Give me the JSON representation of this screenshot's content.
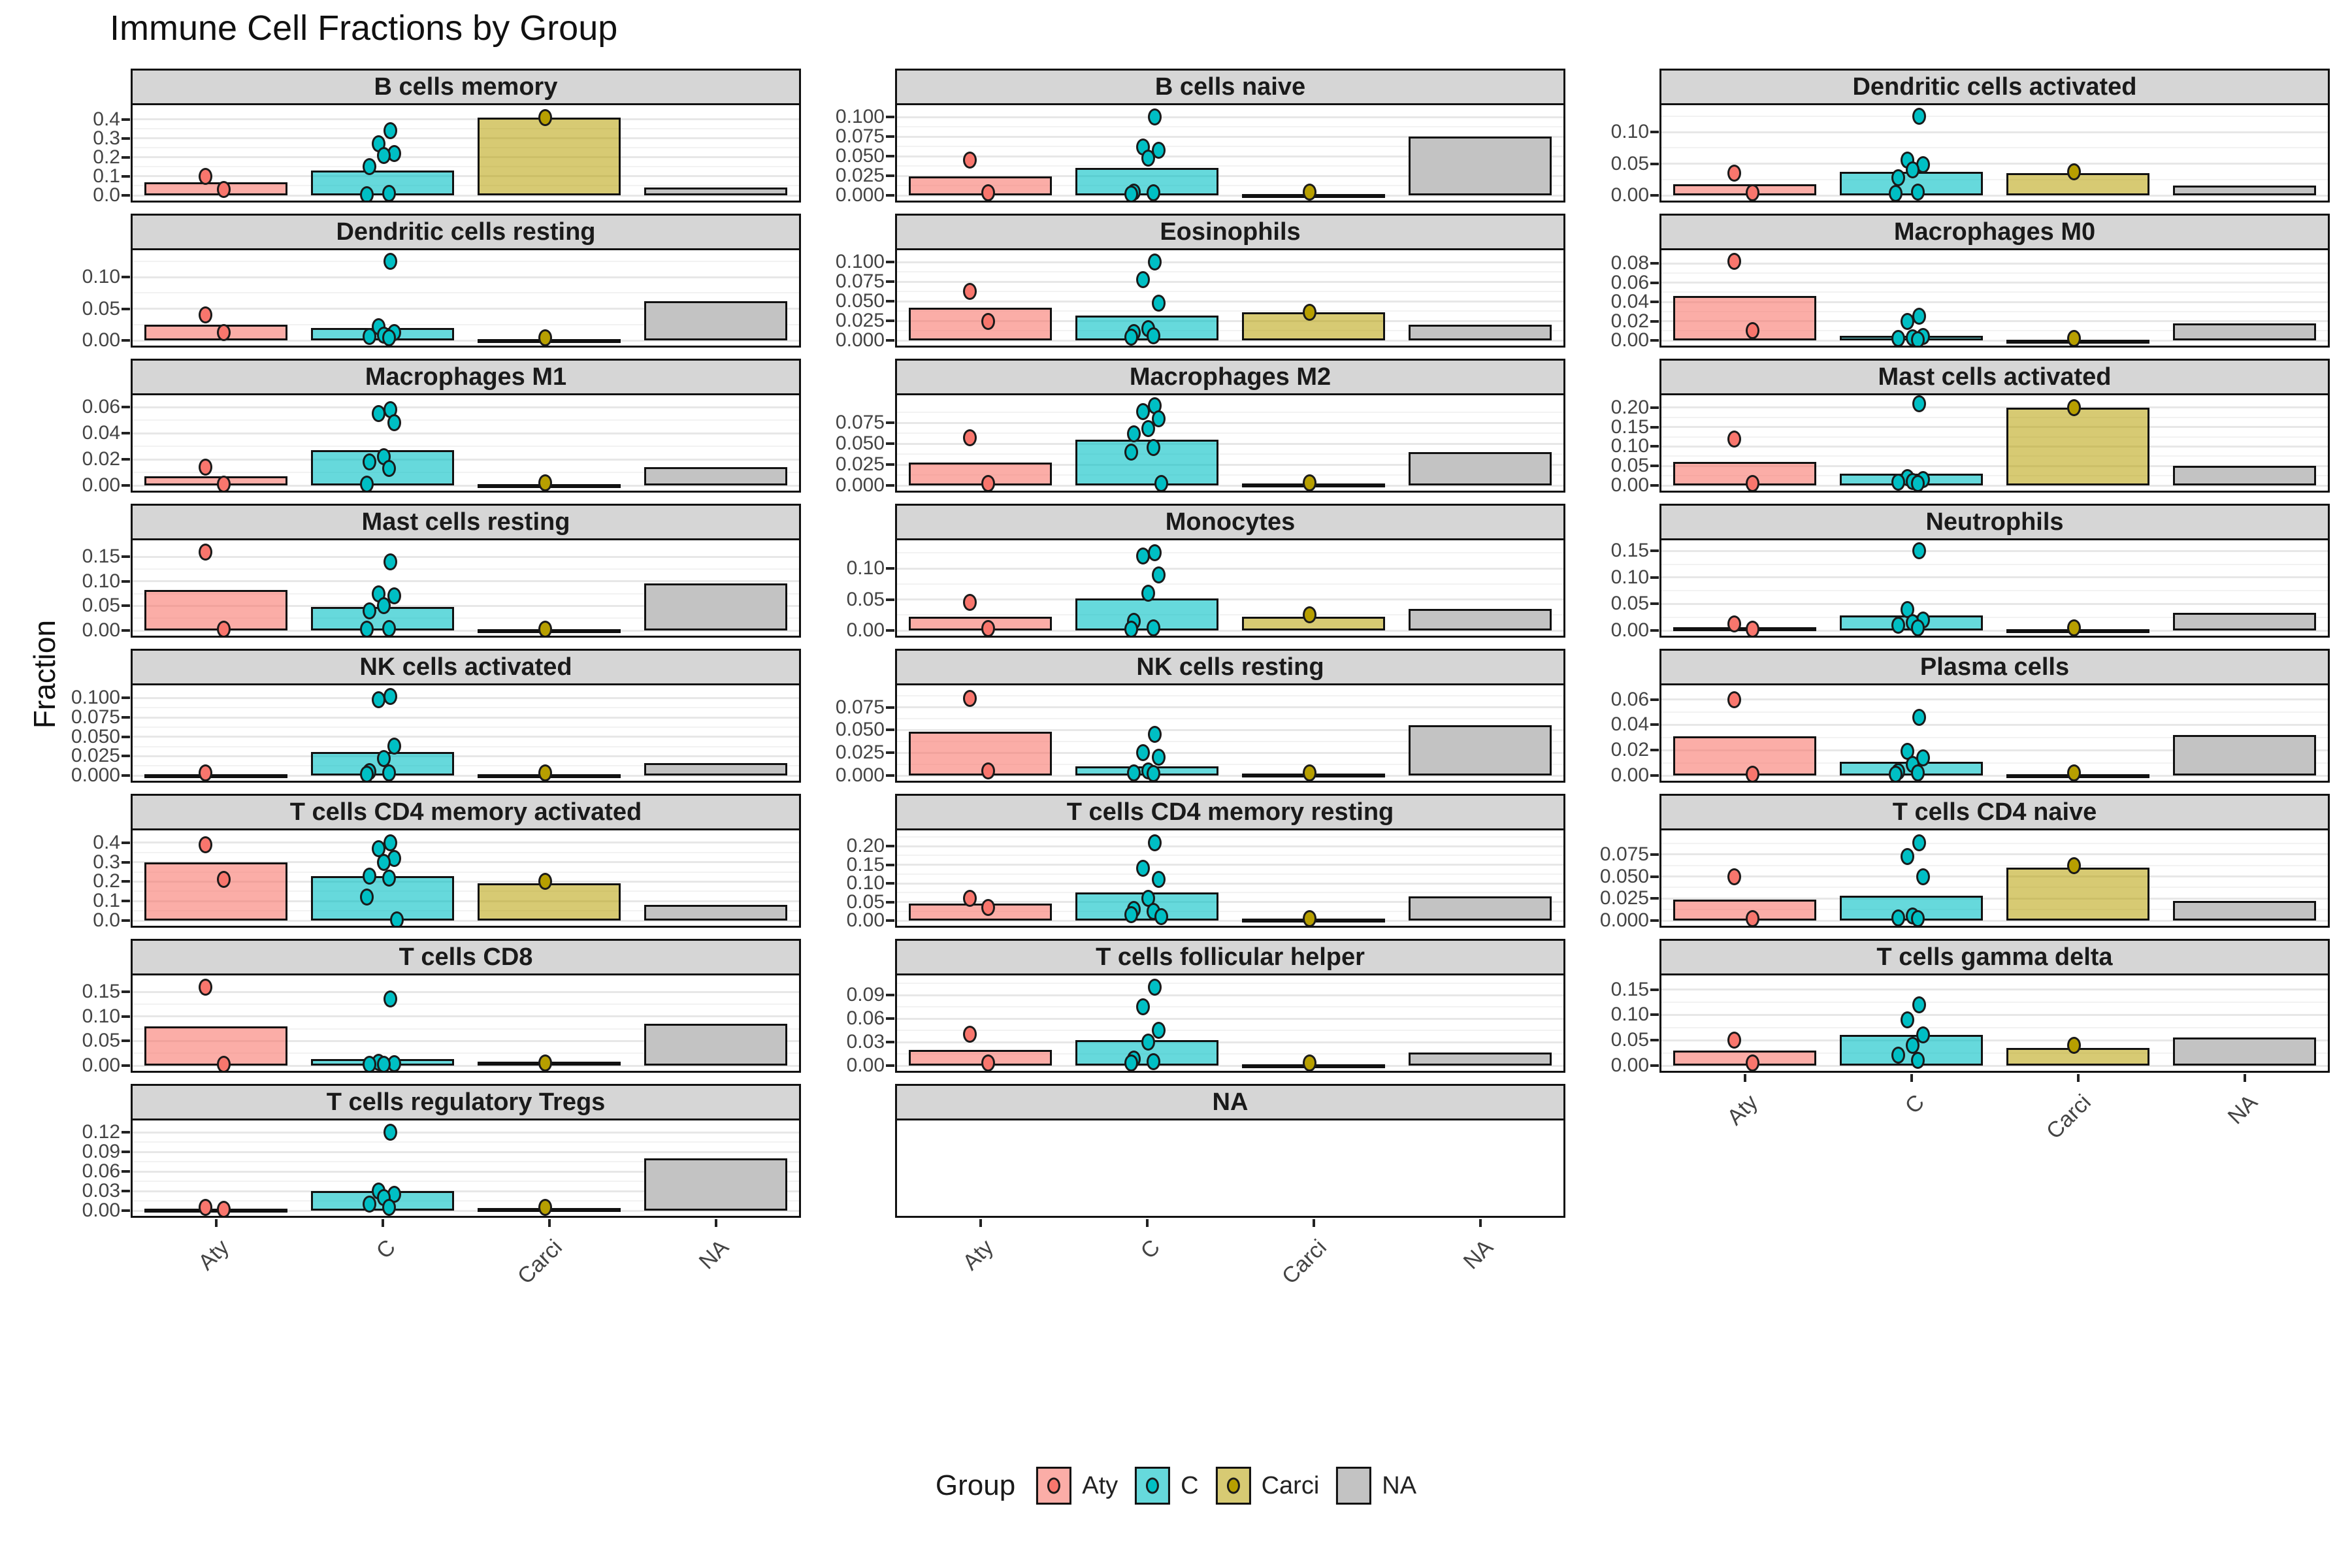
{
  "title": "Immune Cell Fractions by Group",
  "y_axis_label": "Fraction",
  "x_categories": [
    "Aty",
    "C",
    "Carci",
    "NA"
  ],
  "colors": {
    "aty_bar": "rgba(248,118,109,0.6)",
    "aty_point": "#F8766D",
    "c_bar": "rgba(0,191,196,0.6)",
    "c_point": "#00BFC4",
    "carci_bar": "rgba(183,159,0,0.55)",
    "carci_point": "#B79F00",
    "na_bar": "#C3C3C3",
    "strip_bg": "#D6D6D6",
    "panel_border": "#111111"
  },
  "legend": {
    "title": "Group",
    "items": [
      {
        "label": "Aty",
        "fill": "rgba(248,118,109,0.6)",
        "point": "#F8766D"
      },
      {
        "label": "C",
        "fill": "rgba(0,191,196,0.6)",
        "point": "#00BFC4"
      },
      {
        "label": "Carci",
        "fill": "rgba(183,159,0,0.55)",
        "point": "#B79F00"
      },
      {
        "label": "NA",
        "fill": "#C3C3C3",
        "point": null
      }
    ]
  },
  "chart_data": {
    "type": "bar",
    "layout": "facet-grid-3col",
    "categories": [
      "Aty",
      "C",
      "Carci",
      "NA"
    ],
    "facets": [
      {
        "facet": "B cells memory",
        "yticks": [
          0,
          0.1,
          0.2,
          0.3,
          0.4
        ],
        "ytick_labels": [
          "0.0",
          "0.1",
          "0.2",
          "0.3",
          "0.4"
        ],
        "ymax": 0.44,
        "values": [
          0.07,
          0.13,
          0.41,
          0.04
        ],
        "points": {
          "Aty": [
            0.1,
            0.03
          ],
          "C": [
            0.34,
            0.27,
            0.22,
            0.21,
            0.15,
            0.012,
            0.005
          ],
          "Carci": [
            0.41
          ]
        },
        "show_x_axis": false,
        "empty": false
      },
      {
        "facet": "B cells naive",
        "yticks": [
          0,
          0.025,
          0.05,
          0.075,
          0.1
        ],
        "ytick_labels": [
          "0.000",
          "0.025",
          "0.050",
          "0.075",
          "0.100"
        ],
        "ymax": 0.107,
        "values": [
          0.024,
          0.035,
          0.002,
          0.075
        ],
        "points": {
          "Aty": [
            0.045,
            0.003
          ],
          "C": [
            0.1,
            0.062,
            0.058,
            0.048,
            0.004,
            0.003,
            0.002
          ],
          "Carci": [
            0.004
          ]
        },
        "show_x_axis": false,
        "empty": false
      },
      {
        "facet": "Dendritic cells activated",
        "yticks": [
          0,
          0.05,
          0.1
        ],
        "ytick_labels": [
          "0.00",
          "0.05",
          "0.10"
        ],
        "ymax": 0.132,
        "values": [
          0.018,
          0.037,
          0.035,
          0.015
        ],
        "points": {
          "Aty": [
            0.035,
            0.004
          ],
          "C": [
            0.125,
            0.056,
            0.048,
            0.04,
            0.028,
            0.005,
            0.003
          ],
          "Carci": [
            0.037
          ]
        },
        "show_x_axis": false,
        "empty": false
      },
      {
        "facet": "Dendritic cells resting",
        "yticks": [
          0,
          0.05,
          0.1
        ],
        "ytick_labels": [
          "0.00",
          "0.05",
          "0.10"
        ],
        "ymax": 0.132,
        "values": [
          0.025,
          0.02,
          0.002,
          0.062
        ],
        "points": {
          "Aty": [
            0.04,
            0.012
          ],
          "C": [
            0.125,
            0.022,
            0.012,
            0.008,
            0.006,
            0.004
          ],
          "Carci": [
            0.004
          ]
        },
        "show_x_axis": false,
        "empty": false
      },
      {
        "facet": "Eosinophils",
        "yticks": [
          0,
          0.025,
          0.05,
          0.075,
          0.1
        ],
        "ytick_labels": [
          "0.000",
          "0.025",
          "0.050",
          "0.075",
          "0.100"
        ],
        "ymax": 0.107,
        "values": [
          0.042,
          0.032,
          0.036,
          0.02
        ],
        "points": {
          "Aty": [
            0.063,
            0.024
          ],
          "C": [
            0.1,
            0.078,
            0.048,
            0.015,
            0.01,
            0.006,
            0.004
          ],
          "Carci": [
            0.036
          ]
        },
        "show_x_axis": false,
        "empty": false
      },
      {
        "facet": "Macrophages M0",
        "yticks": [
          0,
          0.02,
          0.04,
          0.06,
          0.08
        ],
        "ytick_labels": [
          "0.00",
          "0.02",
          "0.04",
          "0.06",
          "0.08"
        ],
        "ymax": 0.087,
        "values": [
          0.046,
          0.005,
          0.001,
          0.018
        ],
        "points": {
          "Aty": [
            0.082,
            0.01
          ],
          "C": [
            0.025,
            0.02,
            0.004,
            0.003,
            0.002,
            0.001
          ],
          "Carci": [
            0.002
          ]
        },
        "show_x_axis": false,
        "empty": false
      },
      {
        "facet": "Macrophages M1",
        "yticks": [
          0,
          0.02,
          0.04,
          0.06
        ],
        "ytick_labels": [
          "0.00",
          "0.02",
          "0.04",
          "0.06"
        ],
        "ymax": 0.064,
        "values": [
          0.007,
          0.027,
          0.001,
          0.014
        ],
        "points": {
          "Aty": [
            0.014,
            0.001
          ],
          "C": [
            0.058,
            0.055,
            0.048,
            0.022,
            0.018,
            0.013,
            0.001
          ],
          "Carci": [
            0.002
          ]
        },
        "show_x_axis": false,
        "empty": false
      },
      {
        "facet": "Macrophages M2",
        "yticks": [
          0,
          0.025,
          0.05,
          0.075
        ],
        "ytick_labels": [
          "0.000",
          "0.025",
          "0.050",
          "0.075"
        ],
        "ymax": 0.1,
        "values": [
          0.027,
          0.055,
          0.002,
          0.04
        ],
        "points": {
          "Aty": [
            0.057,
            0.002
          ],
          "C": [
            0.095,
            0.088,
            0.08,
            0.068,
            0.062,
            0.045,
            0.04,
            0.002
          ],
          "Carci": [
            0.003
          ]
        },
        "show_x_axis": false,
        "empty": false
      },
      {
        "facet": "Mast cells activated",
        "yticks": [
          0,
          0.05,
          0.1,
          0.15,
          0.2
        ],
        "ytick_labels": [
          "0.00",
          "0.05",
          "0.10",
          "0.15",
          "0.20"
        ],
        "ymax": 0.215,
        "values": [
          0.06,
          0.03,
          0.2,
          0.05
        ],
        "points": {
          "Aty": [
            0.12,
            0.005
          ],
          "C": [
            0.21,
            0.02,
            0.015,
            0.01,
            0.008,
            0.005
          ],
          "Carci": [
            0.2
          ]
        },
        "show_x_axis": false,
        "empty": false
      },
      {
        "facet": "Mast cells resting",
        "yticks": [
          0,
          0.05,
          0.1,
          0.15
        ],
        "ytick_labels": [
          "0.00",
          "0.05",
          "0.10",
          "0.15"
        ],
        "ymax": 0.17,
        "values": [
          0.083,
          0.048,
          0.002,
          0.095
        ],
        "points": {
          "Aty": [
            0.16,
            0.002
          ],
          "C": [
            0.14,
            0.075,
            0.07,
            0.05,
            0.04,
            0.004,
            0.002
          ],
          "Carci": [
            0.003
          ]
        },
        "show_x_axis": false,
        "empty": false
      },
      {
        "facet": "Monocytes",
        "yticks": [
          0,
          0.05,
          0.1
        ],
        "ytick_labels": [
          "0.00",
          "0.05",
          "0.10"
        ],
        "ymax": 0.135,
        "values": [
          0.022,
          0.052,
          0.022,
          0.035
        ],
        "points": {
          "Aty": [
            0.045,
            0.003
          ],
          "C": [
            0.125,
            0.12,
            0.09,
            0.06,
            0.015,
            0.004,
            0.002
          ],
          "Carci": [
            0.025
          ]
        },
        "show_x_axis": false,
        "empty": false
      },
      {
        "facet": "Neutrophils",
        "yticks": [
          0,
          0.05,
          0.1,
          0.15
        ],
        "ytick_labels": [
          "0.00",
          "0.05",
          "0.10",
          "0.15"
        ],
        "ymax": 0.158,
        "values": [
          0.006,
          0.028,
          0.003,
          0.033
        ],
        "points": {
          "Aty": [
            0.012,
            0.003
          ],
          "C": [
            0.15,
            0.04,
            0.02,
            0.015,
            0.01,
            0.005
          ],
          "Carci": [
            0.005
          ]
        },
        "show_x_axis": false,
        "empty": false
      },
      {
        "facet": "NK cells activated",
        "yticks": [
          0,
          0.025,
          0.05,
          0.075,
          0.1
        ],
        "ytick_labels": [
          "0.000",
          "0.025",
          "0.050",
          "0.075",
          "0.100"
        ],
        "ymax": 0.108,
        "values": [
          0.002,
          0.03,
          0.002,
          0.016
        ],
        "points": {
          "Aty": [
            0.003
          ],
          "C": [
            0.102,
            0.098,
            0.038,
            0.022,
            0.005,
            0.003,
            0.002
          ],
          "Carci": [
            0.003
          ]
        },
        "show_x_axis": false,
        "empty": false
      },
      {
        "facet": "NK cells resting",
        "yticks": [
          0,
          0.025,
          0.05,
          0.075
        ],
        "ytick_labels": [
          "0.000",
          "0.025",
          "0.050",
          "0.075"
        ],
        "ymax": 0.092,
        "values": [
          0.048,
          0.01,
          0.002,
          0.055
        ],
        "points": {
          "Aty": [
            0.085,
            0.005
          ],
          "C": [
            0.045,
            0.025,
            0.02,
            0.005,
            0.003,
            0.002
          ],
          "Carci": [
            0.003
          ]
        },
        "show_x_axis": false,
        "empty": false
      },
      {
        "facet": "Plasma cells",
        "yticks": [
          0,
          0.02,
          0.04,
          0.06
        ],
        "ytick_labels": [
          "0.00",
          "0.02",
          "0.04",
          "0.06"
        ],
        "ymax": 0.066,
        "values": [
          0.031,
          0.011,
          0.001,
          0.032
        ],
        "points": {
          "Aty": [
            0.06,
            0.001
          ],
          "C": [
            0.046,
            0.019,
            0.014,
            0.009,
            0.003,
            0.002,
            0.001
          ],
          "Carci": [
            0.002
          ]
        },
        "show_x_axis": false,
        "empty": false
      },
      {
        "facet": "T cells CD4 memory activated",
        "yticks": [
          0,
          0.1,
          0.2,
          0.3,
          0.4
        ],
        "ytick_labels": [
          "0.0",
          "0.1",
          "0.2",
          "0.3",
          "0.4"
        ],
        "ymax": 0.43,
        "values": [
          0.3,
          0.23,
          0.19,
          0.08
        ],
        "points": {
          "Aty": [
            0.39,
            0.21
          ],
          "C": [
            0.4,
            0.37,
            0.32,
            0.3,
            0.23,
            0.22,
            0.12,
            0.005
          ],
          "Carci": [
            0.2
          ]
        },
        "show_x_axis": false,
        "empty": false
      },
      {
        "facet": "T cells CD4 memory resting",
        "yticks": [
          0,
          0.05,
          0.1,
          0.15,
          0.2
        ],
        "ytick_labels": [
          "0.00",
          "0.05",
          "0.10",
          "0.15",
          "0.20"
        ],
        "ymax": 0.225,
        "values": [
          0.045,
          0.075,
          0.005,
          0.065
        ],
        "points": {
          "Aty": [
            0.06,
            0.035
          ],
          "C": [
            0.21,
            0.14,
            0.11,
            0.06,
            0.03,
            0.025,
            0.015,
            0.01
          ],
          "Carci": [
            0.005
          ]
        },
        "show_x_axis": false,
        "empty": false
      },
      {
        "facet": "T cells CD4 naive",
        "yticks": [
          0,
          0.025,
          0.05,
          0.075
        ],
        "ytick_labels": [
          "0.000",
          "0.025",
          "0.050",
          "0.075"
        ],
        "ymax": 0.095,
        "values": [
          0.024,
          0.028,
          0.06,
          0.022
        ],
        "points": {
          "Aty": [
            0.05,
            0.002
          ],
          "C": [
            0.088,
            0.073,
            0.05,
            0.005,
            0.003,
            0.002
          ],
          "Carci": [
            0.062
          ]
        },
        "show_x_axis": false,
        "empty": false
      },
      {
        "facet": "T cells CD8",
        "yticks": [
          0,
          0.05,
          0.1,
          0.15
        ],
        "ytick_labels": [
          "0.00",
          "0.05",
          "0.10",
          "0.15"
        ],
        "ymax": 0.17,
        "values": [
          0.08,
          0.013,
          0.008,
          0.085
        ],
        "points": {
          "Aty": [
            0.16,
            0.002
          ],
          "C": [
            0.135,
            0.006,
            0.004,
            0.003,
            0.002
          ],
          "Carci": [
            0.005
          ]
        },
        "show_x_axis": false,
        "empty": false
      },
      {
        "facet": "T cells follicular helper",
        "yticks": [
          0,
          0.03,
          0.06,
          0.09
        ],
        "ytick_labels": [
          "0.00",
          "0.03",
          "0.06",
          "0.09"
        ],
        "ymax": 0.107,
        "values": [
          0.02,
          0.033,
          0.002,
          0.017
        ],
        "points": {
          "Aty": [
            0.04,
            0.003
          ],
          "C": [
            0.1,
            0.075,
            0.045,
            0.03,
            0.008,
            0.005,
            0.003
          ],
          "Carci": [
            0.003
          ]
        },
        "show_x_axis": false,
        "empty": false
      },
      {
        "facet": "T cells gamma delta",
        "yticks": [
          0,
          0.05,
          0.1,
          0.15
        ],
        "ytick_labels": [
          "0.00",
          "0.05",
          "0.10",
          "0.15"
        ],
        "ymax": 0.165,
        "values": [
          0.03,
          0.06,
          0.035,
          0.055
        ],
        "points": {
          "Aty": [
            0.05,
            0.005
          ],
          "C": [
            0.12,
            0.09,
            0.06,
            0.04,
            0.02,
            0.01
          ],
          "Carci": [
            0.04
          ]
        },
        "show_x_axis": true,
        "empty": false
      },
      {
        "facet": "T cells regulatory Tregs",
        "yticks": [
          0,
          0.03,
          0.06,
          0.09,
          0.12
        ],
        "ytick_labels": [
          "0.00",
          "0.03",
          "0.06",
          "0.09",
          "0.12"
        ],
        "ymax": 0.128,
        "values": [
          0.003,
          0.03,
          0.004,
          0.08
        ],
        "points": {
          "Aty": [
            0.005,
            0.002
          ],
          "C": [
            0.12,
            0.03,
            0.025,
            0.02,
            0.01,
            0.005
          ],
          "Carci": [
            0.005
          ]
        },
        "show_x_axis": true,
        "empty": false
      },
      {
        "facet": "NA",
        "yticks": [],
        "ytick_labels": [],
        "ymax": 1,
        "values": [],
        "points": {},
        "show_x_axis": true,
        "empty": true
      }
    ]
  }
}
